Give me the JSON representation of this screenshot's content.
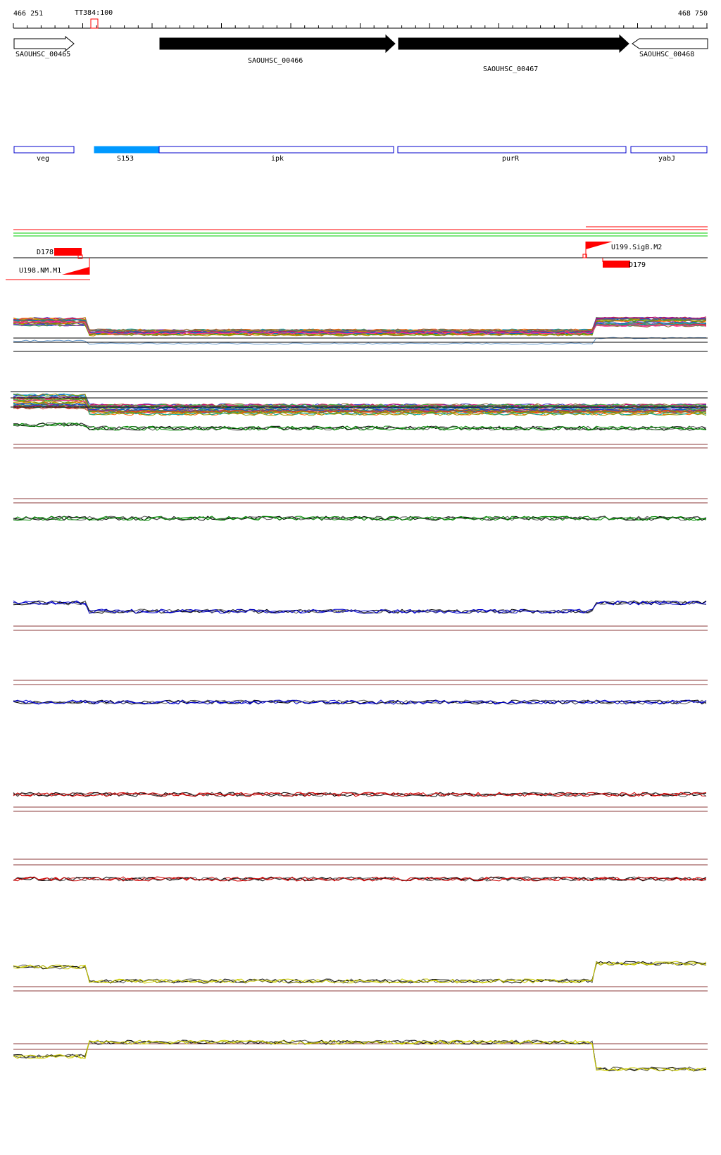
{
  "ruler": {
    "start_label": "466 251",
    "end_label": "468 750",
    "terminator_label": "TT384:100"
  },
  "genes": [
    {
      "id": "SAOUHSC_00465",
      "label": "SAOUHSC_00465",
      "filled": false
    },
    {
      "id": "SAOUHSC_00466",
      "label": "SAOUHSC_00466",
      "filled": true
    },
    {
      "id": "SAOUHSC_00467",
      "label": "SAOUHSC_00467",
      "filled": true
    },
    {
      "id": "SAOUHSC_00468",
      "label": "SAOUHSC_00468",
      "filled": false
    }
  ],
  "annotations": [
    {
      "id": "veg",
      "label": "veg",
      "filled": false
    },
    {
      "id": "S153",
      "label": "S153",
      "filled": true
    },
    {
      "id": "ipk",
      "label": "ipk",
      "filled": false
    },
    {
      "id": "purR",
      "label": "purR",
      "filled": false
    },
    {
      "id": "yabJ",
      "label": "yabJ",
      "filled": false
    }
  ],
  "transcript_features": [
    {
      "id": "D178",
      "label": "D178"
    },
    {
      "id": "U198",
      "label": "U198.NM.M1"
    },
    {
      "id": "U199",
      "label": "U199.SigB.M2"
    },
    {
      "id": "D179",
      "label": "D179"
    }
  ],
  "colors": {
    "gene_fill": "#000000",
    "annotation_outline": "#0000cc",
    "s153_fill": "#0099ff",
    "feature_red": "#ff0000",
    "threshold_line": "#8b3a3a",
    "track_green": "#008800",
    "track_blue": "#0000cc",
    "track_red": "#cc0000",
    "track_yellow": "#cccc00"
  }
}
